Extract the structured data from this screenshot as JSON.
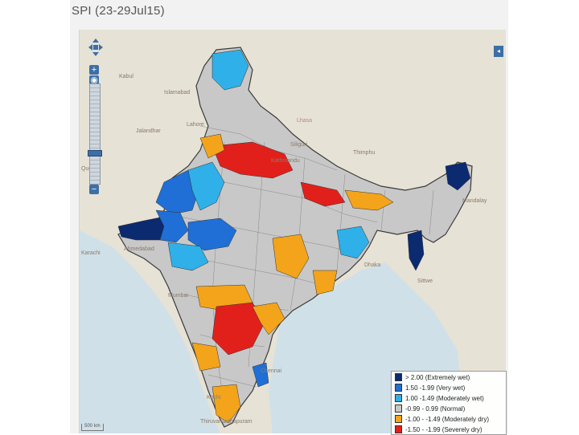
{
  "title": "SPI (23-29Jul15)",
  "controls": {
    "zoom_in_label": "+",
    "zoom_out_label": "−",
    "layer_toggle_label": "◂"
  },
  "places": [
    {
      "name": "Kabul",
      "cls": ""
    },
    {
      "name": "Islamabad",
      "cls": ""
    },
    {
      "name": "Lahore",
      "cls": ""
    },
    {
      "name": "Jalandhar",
      "cls": ""
    },
    {
      "name": "Quetta",
      "cls": ""
    },
    {
      "name": "Siliguri",
      "cls": ""
    },
    {
      "name": "Thimphu",
      "cls": ""
    },
    {
      "name": "Kathmandu",
      "cls": ""
    },
    {
      "name": "Lhasa",
      "cls": "pink"
    },
    {
      "name": "Kochi",
      "cls": ""
    },
    {
      "name": "Chennai",
      "cls": ""
    },
    {
      "name": "Thiruvananthapuram",
      "cls": ""
    },
    {
      "name": "Mumbai",
      "cls": ""
    },
    {
      "name": "Ahmedabad",
      "cls": ""
    },
    {
      "name": "Karachi",
      "cls": ""
    },
    {
      "name": "Mandalay",
      "cls": ""
    },
    {
      "name": "Sittwe",
      "cls": ""
    },
    {
      "name": "Dhaka",
      "cls": ""
    }
  ],
  "legend": {
    "items": [
      {
        "label": "> 2.00 (Extremely wet)",
        "color": "#0b2a6f"
      },
      {
        "label": "1.50 -1.99 (Very wet)",
        "color": "#1f6fd6"
      },
      {
        "label": "1.00 -1.49 (Moderately wet)",
        "color": "#2fb0e8"
      },
      {
        "label": "-0.99 - 0.99 (Normal)",
        "color": "#c8c8c8"
      },
      {
        "label": "-1.00 - -1.49 (Moderately dry)",
        "color": "#f3a41b"
      },
      {
        "label": "-1.50 - -1.99 (Severely dry)",
        "color": "#e2201b"
      }
    ]
  },
  "scale_text": "500 km"
}
